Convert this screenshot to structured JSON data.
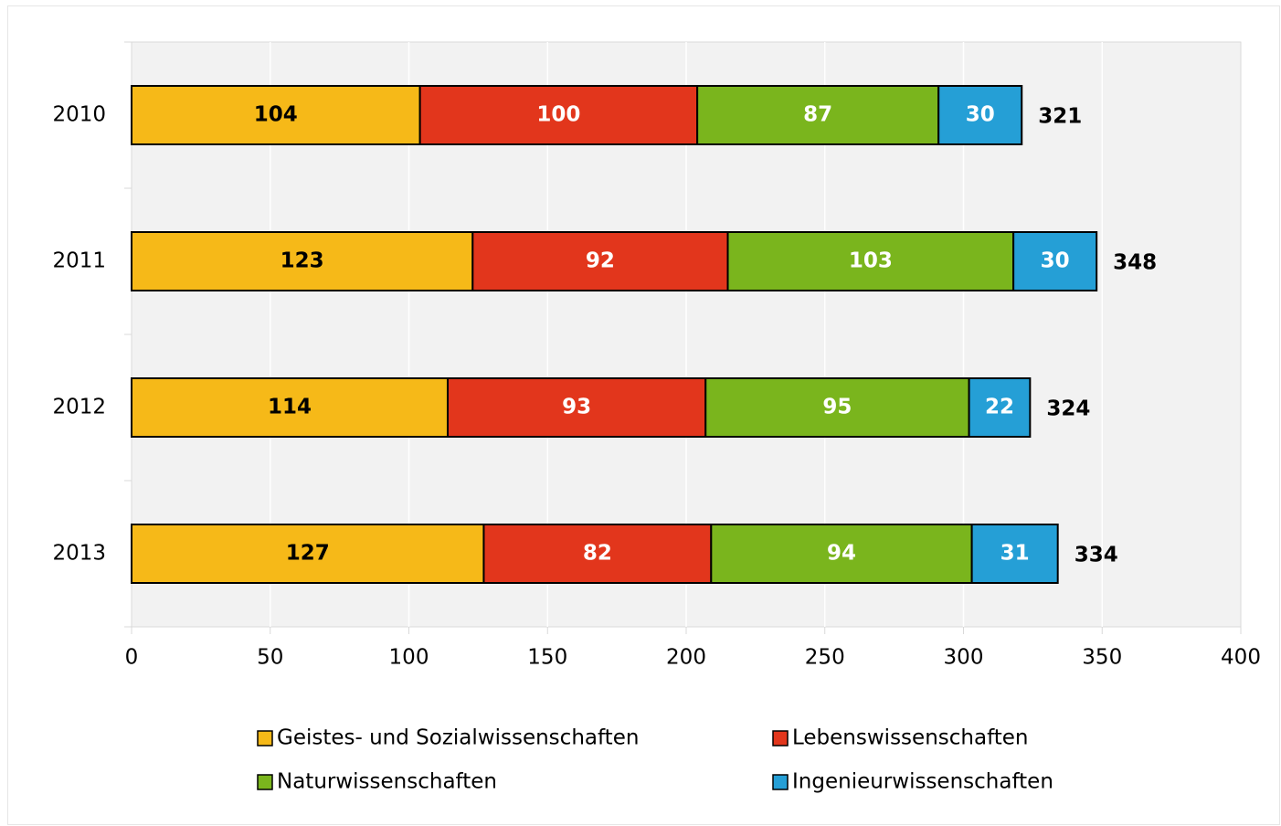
{
  "chart_data": {
    "type": "stacked-barh",
    "categories": [
      "2010",
      "2011",
      "2012",
      "2013"
    ],
    "series": [
      {
        "name": "Geistes- und Sozialwissenschaften",
        "color": "#f6b918",
        "label_color": "#000000",
        "values": [
          104,
          123,
          114,
          127
        ]
      },
      {
        "name": "Lebenswissenschaften",
        "color": "#e2361c",
        "label_color": "#ffffff",
        "values": [
          100,
          92,
          93,
          82
        ]
      },
      {
        "name": "Naturwissenschaften",
        "color": "#7ab51d",
        "label_color": "#ffffff",
        "values": [
          87,
          103,
          95,
          94
        ]
      },
      {
        "name": "Ingenieurwissenschaften",
        "color": "#259fd6",
        "label_color": "#ffffff",
        "values": [
          30,
          30,
          22,
          31
        ]
      }
    ],
    "totals": [
      321,
      348,
      324,
      334
    ],
    "xlim": [
      0,
      400
    ],
    "xticks": [
      0,
      50,
      100,
      150,
      200,
      250,
      300,
      350,
      400
    ],
    "grid": true
  }
}
